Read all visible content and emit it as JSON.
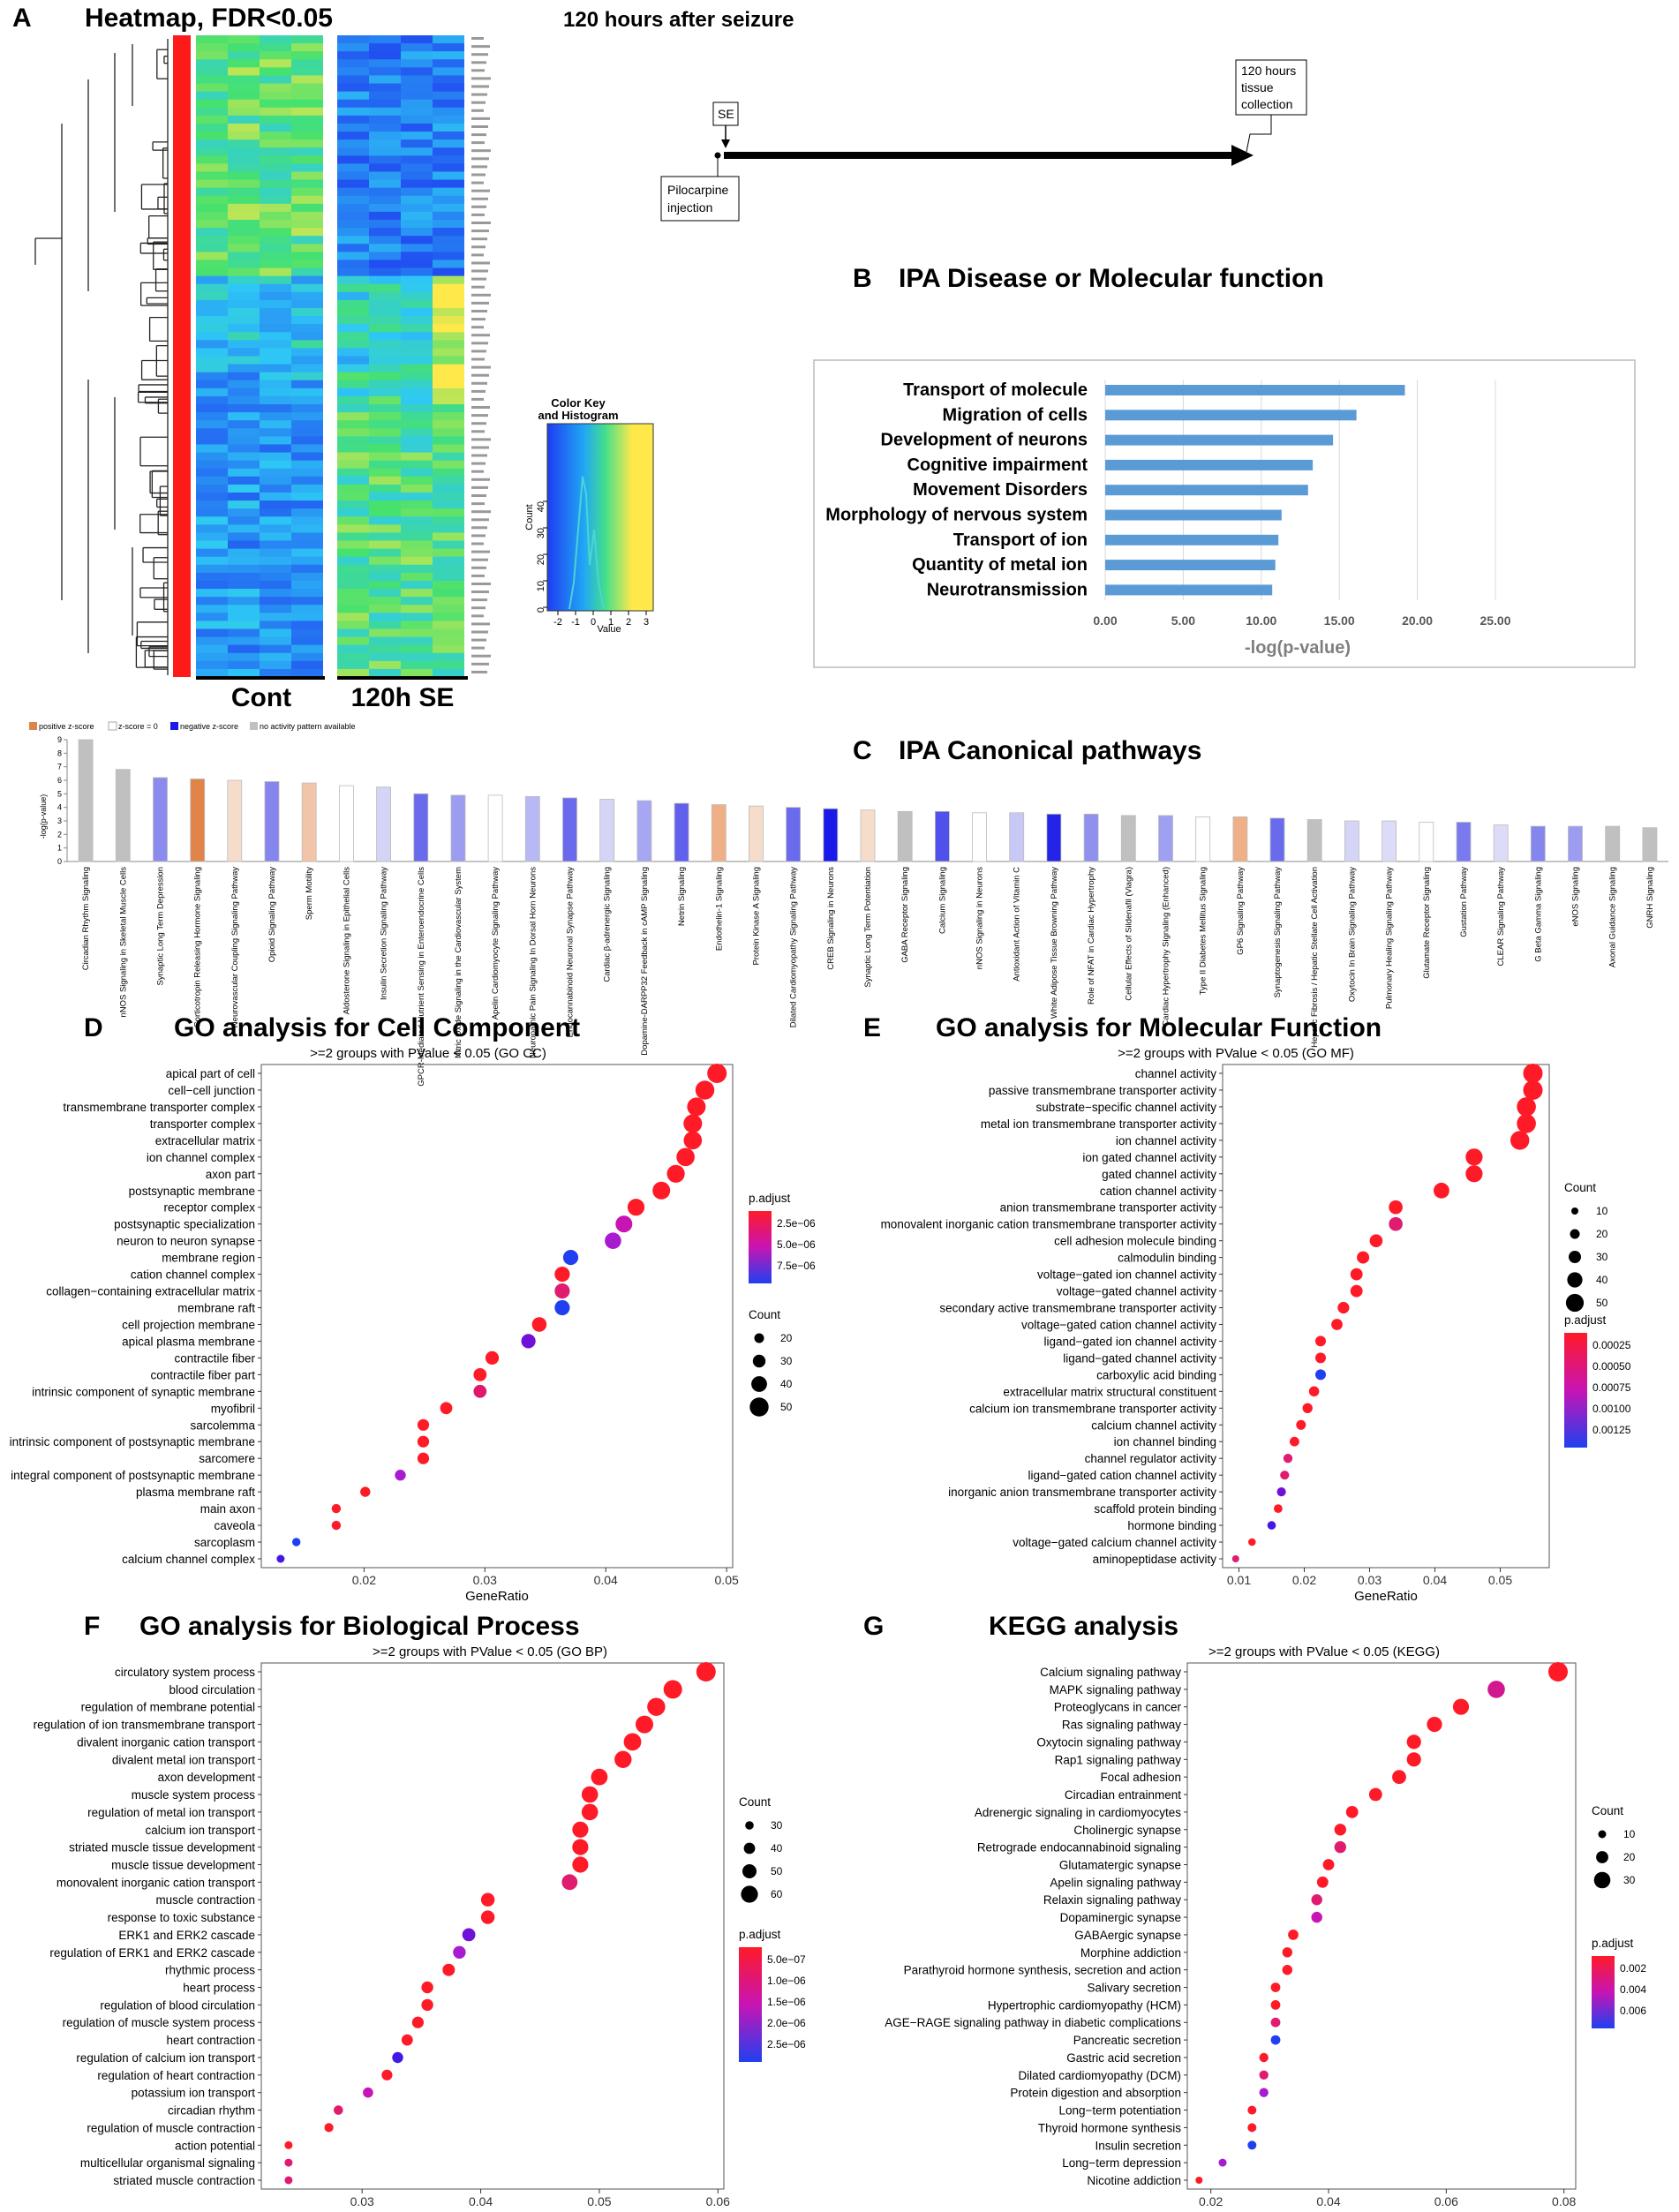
{
  "panel_labels": {
    "A": "A",
    "B": "B",
    "C": "C",
    "D": "D",
    "E": "E",
    "F": "F",
    "G": "G"
  },
  "panelA": {
    "title": "Heatmap, FDR<0.05",
    "group_labels": [
      "Cont",
      "120h SE"
    ],
    "colorkey": {
      "title": "Color Key",
      "subtitle": "and Histogram",
      "ylabel": "Count",
      "xlabel": "Value",
      "xticks": [
        "-2",
        "-1",
        "0",
        "1",
        "2",
        "3"
      ],
      "yticks": [
        "0",
        "10",
        "20",
        "30",
        "40"
      ]
    },
    "colors": {
      "low": "#1f3df0",
      "mid": "#2ec8f5",
      "high": "#ffe84a",
      "sidebar": "#ff1a1a"
    }
  },
  "timeline": {
    "title": "120 hours after seizure",
    "se": "SE",
    "end_line1": "120 hours",
    "end_line2": "tissue",
    "end_line3": "collection",
    "start_line1": "Pilocarpine",
    "start_line2": "injection"
  },
  "chart_data": [
    {
      "id": "B",
      "type": "bar",
      "orientation": "horizontal",
      "title": "IPA Disease or Molecular function",
      "xlabel": "-log(p-value)",
      "xlim": [
        0,
        25
      ],
      "xticks": [
        "0.00",
        "5.00",
        "10.00",
        "15.00",
        "20.00",
        "25.00"
      ],
      "color": "#5b9bd5",
      "categories": [
        "Transport of molecule",
        "Migration of cells",
        "Development of neurons",
        "Cognitive impairment",
        "Movement Disorders",
        "Morphology of nervous system",
        "Transport of ion",
        "Quantity of metal ion",
        "Neurotransmission"
      ],
      "values": [
        19.2,
        16.1,
        14.6,
        13.3,
        13.0,
        11.3,
        11.1,
        10.9,
        10.7
      ]
    },
    {
      "id": "C",
      "type": "bar",
      "title": "IPA Canonical pathways",
      "ylabel": "-log(p-value)",
      "ylim": [
        0,
        9
      ],
      "legend": [
        "positive z-score",
        "z-score = 0",
        "negative z-score",
        "no activity pattern available"
      ],
      "categories": [
        "Circadian Rhythm Signaling",
        "nNOS Signaling in Skeletal Muscle Cells",
        "Synaptic Long Term Depression",
        "Corticotropin Releasing Hormone Signaling",
        "Neurovascular Coupling Signaling Pathway",
        "Opioid Signaling Pathway",
        "Sperm Motility",
        "Aldosterone Signaling in Epithelial Cells",
        "Insulin Secretion Signaling Pathway",
        "GPCR-Mediated Nutrient Sensing in Enteroendocrine Cells",
        "Nitric Oxide Signaling in the Cardiovascular System",
        "Apelin Cardiomyocyte Signaling Pathway",
        "Neuropathic Pain Signaling In Dorsal Horn Neurons",
        "Endocannabinoid Neuronal Synapse Pathway",
        "Cardiac β-adrenergic Signaling",
        "Dopamine-DARPP32 Feedback in cAMP Signaling",
        "Netrin Signaling",
        "Endothelin-1 Signaling",
        "Protein Kinase A Signaling",
        "Dilated Cardiomyopathy Signaling Pathway",
        "CREB Signaling in Neurons",
        "Synaptic Long Term Potentiation",
        "GABA Receptor Signaling",
        "Calcium Signaling",
        "nNOS Signaling in Neurons",
        "Antioxidant Action of Vitamin C",
        "White Adipose Tissue Browning Pathway",
        "Role of NFAT in Cardiac Hypertrophy",
        "Cellular Effects of Sildenafil (Viagra)",
        "Cardiac Hypertrophy Signaling (Enhanced)",
        "Type II Diabetes Mellitus Signaling",
        "GP6 Signaling Pathway",
        "Synaptogenesis Signaling Pathway",
        "Hepatic Fibrosis / Hepatic Stellate Cell Activation",
        "Oxytocin In Brain Signaling Pathway",
        "Pulmonary Healing Signaling Pathway",
        "Glutamate Receptor Signaling",
        "Gustation Pathway",
        "CLEAR Signaling Pathway",
        "G Beta Gamma Signaling",
        "eNOS Signaling",
        "Axonal Guidance Signaling",
        "GNRH Signaling"
      ],
      "values": [
        9.0,
        6.8,
        6.2,
        6.1,
        6.0,
        5.9,
        5.8,
        5.6,
        5.5,
        5.0,
        4.9,
        4.9,
        4.8,
        4.7,
        4.6,
        4.5,
        4.3,
        4.2,
        4.1,
        4.0,
        3.9,
        3.8,
        3.7,
        3.7,
        3.6,
        3.6,
        3.5,
        3.5,
        3.4,
        3.4,
        3.3,
        3.3,
        3.2,
        3.1,
        3.0,
        3.0,
        2.9,
        2.9,
        2.7,
        2.6,
        2.6,
        2.6,
        2.5
      ],
      "colors": [
        "#c0c0c0",
        "#c0c0c0",
        "#8b8bee",
        "#e0844a",
        "#f6dccb",
        "#8585ee",
        "#f2c4a8",
        "#ffffff",
        "#d4d4f6",
        "#6a6aec",
        "#9c9cf0",
        "#ffffff",
        "#b8b8f4",
        "#6a6aec",
        "#d4d4f6",
        "#a6a6f2",
        "#6060ec",
        "#efb088",
        "#f6dccb",
        "#6a6aec",
        "#1a1ae8",
        "#f6dccb",
        "#c0c0c0",
        "#5050ea",
        "#ffffff",
        "#c8c8f6",
        "#2424e8",
        "#9090ef",
        "#c0c0c0",
        "#a0a0f2",
        "#ffffff",
        "#efb088",
        "#6a6aec",
        "#c0c0c0",
        "#d4d4f6",
        "#dcdcf8",
        "#ffffff",
        "#7a7aee",
        "#dcdcf8",
        "#8585ee",
        "#9c9cf0",
        "#c0c0c0",
        "#c0c0c0"
      ]
    },
    {
      "id": "D",
      "type": "scatter",
      "title": "GO analysis for Cell Component",
      "subtitle": ">=2 groups with PValue < 0.05 (GO CC)",
      "xlabel": "GeneRatio",
      "xlim": [
        0.0115,
        0.0505
      ],
      "xticks": [
        0.02,
        0.03,
        0.04,
        0.05
      ],
      "categories": [
        "apical part of cell",
        "cell−cell junction",
        "transmembrane transporter complex",
        "transporter complex",
        "extracellular matrix",
        "ion channel complex",
        "axon part",
        "postsynaptic membrane",
        "receptor complex",
        "postsynaptic specialization",
        "neuron to neuron synapse",
        "membrane region",
        "cation channel complex",
        "collagen−containing extracellular matrix",
        "membrane raft",
        "cell projection membrane",
        "apical plasma membrane",
        "contractile fiber",
        "contractile fiber part",
        "intrinsic component of synaptic membrane",
        "myofibril",
        "sarcolemma",
        "intrinsic component of postsynaptic membrane",
        "sarcomere",
        "integral component of postsynaptic membrane",
        "plasma membrane raft",
        "main axon",
        "caveola",
        "sarcoplasm",
        "calcium channel complex"
      ],
      "x": [
        0.0492,
        0.0482,
        0.0475,
        0.0472,
        0.0472,
        0.0466,
        0.0458,
        0.0446,
        0.0425,
        0.0415,
        0.0406,
        0.0371,
        0.0364,
        0.0364,
        0.0364,
        0.0345,
        0.0336,
        0.0306,
        0.0296,
        0.0296,
        0.0268,
        0.0249,
        0.0249,
        0.0249,
        0.023,
        0.0201,
        0.0177,
        0.0177,
        0.0144,
        0.0131
      ],
      "count": [
        52,
        50,
        49,
        49,
        48,
        48,
        47,
        46,
        44,
        43,
        42,
        38,
        38,
        38,
        38,
        36,
        35,
        32,
        31,
        31,
        28,
        26,
        26,
        26,
        24,
        21,
        18,
        18,
        15,
        14
      ],
      "p_adjust_color": [
        "#ff1a28",
        "#ff1a28",
        "#ff1a28",
        "#ff1a28",
        "#ff1a28",
        "#ff1a28",
        "#ff1a28",
        "#ff1a28",
        "#ff1a28",
        "#c814b4",
        "#a81cd0",
        "#2040f0",
        "#ff1a28",
        "#e01c70",
        "#2040f0",
        "#ff1a28",
        "#7010d8",
        "#ff1a28",
        "#ff1a28",
        "#e0186c",
        "#ff1a28",
        "#ff1a28",
        "#ff1a28",
        "#ff1a28",
        "#a81cd0",
        "#ff1a28",
        "#ff1a28",
        "#ff1a28",
        "#2040f0",
        "#4418e4"
      ],
      "color_legend": {
        "title": "p.adjust",
        "labels": [
          "2.5e−06",
          "5.0e−06",
          "7.5e−06"
        ]
      },
      "size_legend": {
        "title": "Count",
        "values": [
          20,
          30,
          40,
          50
        ]
      }
    },
    {
      "id": "E",
      "type": "scatter",
      "title": "GO analysis for  Molecular Function",
      "subtitle": ">=2 groups with PValue < 0.05 (GO MF)",
      "xlabel": "GeneRatio",
      "xlim": [
        0.0075,
        0.0575
      ],
      "xticks": [
        0.01,
        0.02,
        0.03,
        0.04,
        0.05
      ],
      "categories": [
        "channel activity",
        "passive transmembrane transporter activity",
        "substrate−specific channel activity",
        "metal ion transmembrane transporter activity",
        "ion channel activity",
        "ion gated channel activity",
        "gated channel activity",
        "cation channel activity",
        "anion transmembrane transporter activity",
        "monovalent inorganic cation transmembrane transporter activity",
        "cell adhesion molecule binding",
        "calmodulin binding",
        "voltage−gated ion channel activity",
        "voltage−gated channel activity",
        "secondary active transmembrane transporter activity",
        "voltage−gated cation channel activity",
        "ligand−gated ion channel activity",
        "ligand−gated channel activity",
        "carboxylic acid binding",
        "extracellular matrix structural constituent",
        "calcium ion transmembrane transporter activity",
        "calcium channel activity",
        "ion channel binding",
        "channel regulator activity",
        "ligand−gated cation channel activity",
        "inorganic anion transmembrane transporter activity",
        "scaffold protein binding",
        "hormone binding",
        "voltage−gated calcium channel activity",
        "aminopeptidase activity"
      ],
      "x": [
        0.055,
        0.055,
        0.054,
        0.054,
        0.053,
        0.046,
        0.046,
        0.041,
        0.034,
        0.034,
        0.031,
        0.029,
        0.028,
        0.028,
        0.026,
        0.025,
        0.0225,
        0.0225,
        0.0225,
        0.0215,
        0.0205,
        0.0195,
        0.0185,
        0.0175,
        0.017,
        0.0165,
        0.016,
        0.015,
        0.012,
        0.0095
      ],
      "count": [
        56,
        56,
        55,
        55,
        54,
        47,
        47,
        42,
        35,
        35,
        32,
        30,
        29,
        29,
        27,
        26,
        23,
        23,
        23,
        22,
        21,
        20,
        19,
        18,
        17,
        17,
        16,
        15,
        12,
        10
      ],
      "p_adjust_color": [
        "#ff1a28",
        "#ff1a28",
        "#ff1a28",
        "#ff1a28",
        "#ff1a28",
        "#ff1a28",
        "#ff1a28",
        "#ff1a28",
        "#ff1a28",
        "#e01c70",
        "#ff1a28",
        "#ff1a28",
        "#ff1a28",
        "#ff1a28",
        "#ff1a28",
        "#ff1a28",
        "#ff1a28",
        "#ff1a28",
        "#2040f0",
        "#ff1a28",
        "#ff1a28",
        "#ff1a28",
        "#ff1a28",
        "#e01c70",
        "#e01c70",
        "#7010d8",
        "#ff1a28",
        "#4418e4",
        "#ff1a28",
        "#e01c70"
      ],
      "color_legend": {
        "title": "p.adjust",
        "labels": [
          "0.00025",
          "0.00050",
          "0.00075",
          "0.00100",
          "0.00125"
        ]
      },
      "size_legend": {
        "title": "Count",
        "values": [
          10,
          20,
          30,
          40,
          50
        ]
      }
    },
    {
      "id": "F",
      "type": "scatter",
      "title": "GO analysis for Biological Process",
      "subtitle": ">=2 groups with PValue < 0.05 (GO BP)",
      "xlabel": "GeneRatio",
      "xlim": [
        0.0215,
        0.0605
      ],
      "xticks": [
        0.03,
        0.04,
        0.05,
        0.06
      ],
      "categories": [
        "circulatory system process",
        "blood circulation",
        "regulation of membrane potential",
        "regulation of ion transmembrane transport",
        "divalent inorganic cation transport",
        "divalent metal ion transport",
        "axon development",
        "muscle system process",
        "regulation of metal ion transport",
        "calcium ion transport",
        "striated muscle tissue development",
        "muscle tissue development",
        "monovalent inorganic cation transport",
        "muscle contraction",
        "response to toxic substance",
        "ERK1 and ERK2 cascade",
        "regulation of ERK1 and ERK2 cascade",
        "rhythmic process",
        "heart process",
        "regulation of blood circulation",
        "regulation of muscle system process",
        "heart contraction",
        "regulation of calcium ion transport",
        "regulation of heart contraction",
        "potassium ion transport",
        "circadian rhythm",
        "regulation of muscle contraction",
        "action potential",
        "multicellular organismal signaling",
        "striated muscle contraction"
      ],
      "x": [
        0.059,
        0.0562,
        0.0548,
        0.0538,
        0.0528,
        0.052,
        0.05,
        0.0492,
        0.0492,
        0.0484,
        0.0484,
        0.0484,
        0.0475,
        0.0406,
        0.0406,
        0.039,
        0.0382,
        0.0373,
        0.0355,
        0.0355,
        0.0347,
        0.0338,
        0.033,
        0.0321,
        0.0305,
        0.028,
        0.0272,
        0.0238,
        0.0238,
        0.0238
      ],
      "count": [
        69,
        66,
        64,
        63,
        62,
        61,
        59,
        58,
        58,
        57,
        57,
        57,
        56,
        48,
        48,
        46,
        45,
        44,
        42,
        42,
        41,
        40,
        39,
        38,
        36,
        33,
        32,
        28,
        28,
        28
      ],
      "p_adjust_color": [
        "#ff1a28",
        "#ff1a28",
        "#ff1a28",
        "#ff1a28",
        "#ff1a28",
        "#ff1a28",
        "#ff1a28",
        "#ff1a28",
        "#ff1a28",
        "#ff1a28",
        "#ff1a28",
        "#ff1a28",
        "#e01c70",
        "#ff1a28",
        "#ff1a28",
        "#7010d8",
        "#a81cd0",
        "#ff1a28",
        "#ff1a28",
        "#ff1a28",
        "#ff1a28",
        "#ff1a28",
        "#4418e4",
        "#ff1a28",
        "#c814b4",
        "#e01c70",
        "#ff1a28",
        "#ff1a28",
        "#e01c70",
        "#e01c70"
      ],
      "color_legend": {
        "title": "p.adjust",
        "labels": [
          "5.0e−07",
          "1.0e−06",
          "1.5e−06",
          "2.0e−06",
          "2.5e−06"
        ]
      },
      "size_legend": {
        "title": "Count",
        "values": [
          30,
          40,
          50,
          60
        ]
      }
    },
    {
      "id": "G",
      "type": "scatter",
      "title": "KEGG analysis",
      "subtitle": ">=2 groups with PValue < 0.05 (KEGG)",
      "xlabel": "GeneRatio",
      "xlim": [
        0.016,
        0.082
      ],
      "xticks": [
        0.02,
        0.04,
        0.06,
        0.08
      ],
      "categories": [
        "Calcium signaling pathway",
        "MAPK signaling pathway",
        "Proteoglycans in cancer",
        "Ras signaling pathway",
        "Oxytocin signaling pathway",
        "Rap1 signaling pathway",
        "Focal adhesion",
        "Circadian entrainment",
        "Adrenergic signaling in cardiomyocytes",
        "Cholinergic synapse",
        "Retrograde endocannabinoid signaling",
        "Glutamatergic synapse",
        "Apelin signaling pathway",
        "Relaxin signaling pathway",
        "Dopaminergic synapse",
        "GABAergic synapse",
        "Morphine addiction",
        "Parathyroid hormone synthesis, secretion and action",
        "Salivary secretion",
        "Hypertrophic cardiomyopathy (HCM)",
        "AGE−RAGE signaling pathway in diabetic complications",
        "Pancreatic secretion",
        "Gastric acid secretion",
        "Dilated cardiomyopathy (DCM)",
        "Protein digestion and absorption",
        "Long−term potentiation",
        "Thyroid hormone synthesis",
        "Insulin secretion",
        "Long−term depression",
        "Nicotine addiction"
      ],
      "x": [
        0.079,
        0.0685,
        0.0625,
        0.058,
        0.0545,
        0.0545,
        0.052,
        0.048,
        0.044,
        0.042,
        0.042,
        0.04,
        0.039,
        0.038,
        0.038,
        0.034,
        0.033,
        0.033,
        0.031,
        0.031,
        0.031,
        0.031,
        0.029,
        0.029,
        0.029,
        0.027,
        0.027,
        0.027,
        0.022,
        0.018
      ],
      "count": [
        37,
        32,
        29,
        27,
        25,
        25,
        24,
        22,
        20,
        19,
        19,
        18,
        18,
        17,
        17,
        16,
        15,
        15,
        14,
        14,
        14,
        14,
        13,
        13,
        13,
        12,
        12,
        12,
        10,
        8
      ],
      "p_adjust_color": [
        "#ff1a28",
        "#d21890",
        "#ff1a28",
        "#ff1a28",
        "#ff1a28",
        "#ff1a28",
        "#ff1a28",
        "#ff1a28",
        "#ff1a28",
        "#ff1a28",
        "#e01c70",
        "#ff1a28",
        "#ff1a28",
        "#e01c70",
        "#c814b4",
        "#ff1a28",
        "#ff1a28",
        "#ff1a28",
        "#ff1a28",
        "#ff1a28",
        "#e01c70",
        "#2040f0",
        "#ff1a28",
        "#e01c70",
        "#a81cd0",
        "#ff1a28",
        "#ff1a28",
        "#2040f0",
        "#a81cd0",
        "#ff1a28"
      ],
      "color_legend": {
        "title": "p.adjust",
        "labels": [
          "0.002",
          "0.004",
          "0.006"
        ]
      },
      "size_legend": {
        "title": "Count",
        "values": [
          10,
          20,
          30
        ]
      }
    }
  ]
}
